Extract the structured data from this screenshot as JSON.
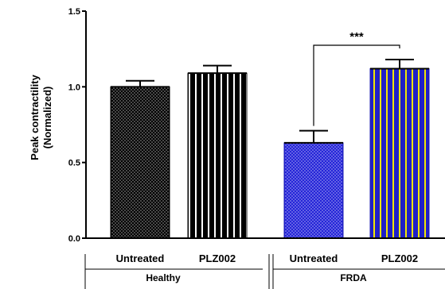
{
  "chart_data": {
    "type": "bar",
    "title": "",
    "xlabel": "",
    "ylabel_line1": "Peak contractility",
    "ylabel_line2": "(Normalized)",
    "ylim": [
      0,
      1.5
    ],
    "yticks": [
      {
        "value": 0.0,
        "label": "0.0"
      },
      {
        "value": 0.5,
        "label": "0.5"
      },
      {
        "value": 1.0,
        "label": "1.0"
      },
      {
        "value": 1.5,
        "label": "1.5"
      }
    ],
    "categories": [
      "Untreated",
      "PLZ002",
      "Untreated",
      "PLZ002"
    ],
    "values": [
      1.0,
      1.09,
      0.63,
      1.12
    ],
    "errors": [
      0.04,
      0.05,
      0.08,
      0.06
    ],
    "groups": [
      {
        "label": "Healthy",
        "categories": [
          0,
          1
        ]
      },
      {
        "label": "FRDA",
        "categories": [
          2,
          3
        ]
      }
    ],
    "bar_styles": [
      {
        "pattern": "dots",
        "fill": "#000000",
        "accent": "#ffffff"
      },
      {
        "pattern": "vstripes",
        "fill": "#000000",
        "accent": "#ffffff"
      },
      {
        "pattern": "dots",
        "fill": "#2424d8",
        "accent": "#ffffff"
      },
      {
        "pattern": "vstripes",
        "fill": "#2020c8",
        "accent": "#f2e600"
      }
    ],
    "significance": [
      {
        "from": 2,
        "to": 3,
        "label": "***"
      }
    ],
    "grid": false,
    "legend": "none"
  }
}
